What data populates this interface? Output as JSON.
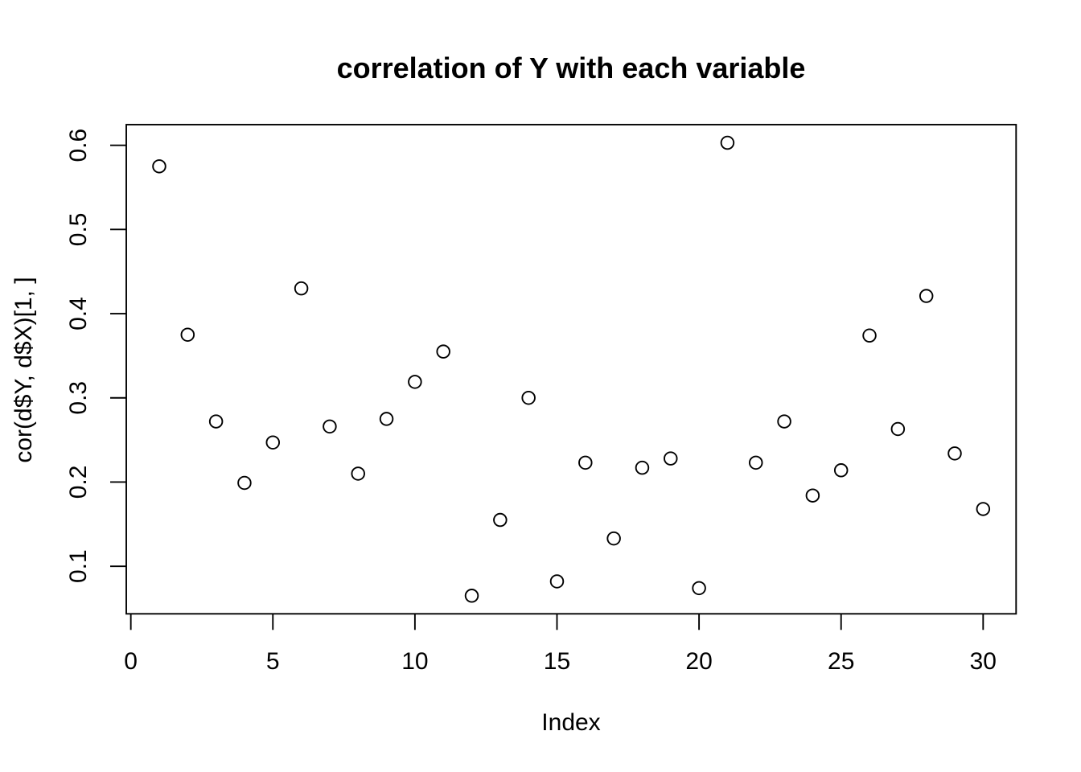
{
  "chart_data": {
    "type": "scatter",
    "title": "correlation of Y with each variable",
    "xlabel": "Index",
    "ylabel": "cor(d$Y, d$X)[1, ]",
    "x": [
      1,
      2,
      3,
      4,
      5,
      6,
      7,
      8,
      9,
      10,
      11,
      12,
      13,
      14,
      15,
      16,
      17,
      18,
      19,
      20,
      21,
      22,
      23,
      24,
      25,
      26,
      27,
      28,
      29,
      30
    ],
    "y": [
      0.575,
      0.375,
      0.272,
      0.199,
      0.247,
      0.43,
      0.266,
      0.21,
      0.275,
      0.319,
      0.355,
      0.065,
      0.155,
      0.3,
      0.082,
      0.223,
      0.133,
      0.217,
      0.228,
      0.074,
      0.603,
      0.223,
      0.272,
      0.184,
      0.214,
      0.374,
      0.263,
      0.421,
      0.234,
      0.168
    ],
    "x_tick_labels": [
      "0",
      "5",
      "10",
      "15",
      "20",
      "25",
      "30"
    ],
    "y_tick_labels": [
      "0.1",
      "0.2",
      "0.3",
      "0.4",
      "0.5",
      "0.6"
    ],
    "xlim": [
      -0.16,
      31.16
    ],
    "ylim": [
      0.0435,
      0.6245
    ],
    "grid": false,
    "legend": null,
    "marker": "open-circle",
    "point_color": "#000000",
    "axis_color": "#000000",
    "background": "#ffffff"
  }
}
